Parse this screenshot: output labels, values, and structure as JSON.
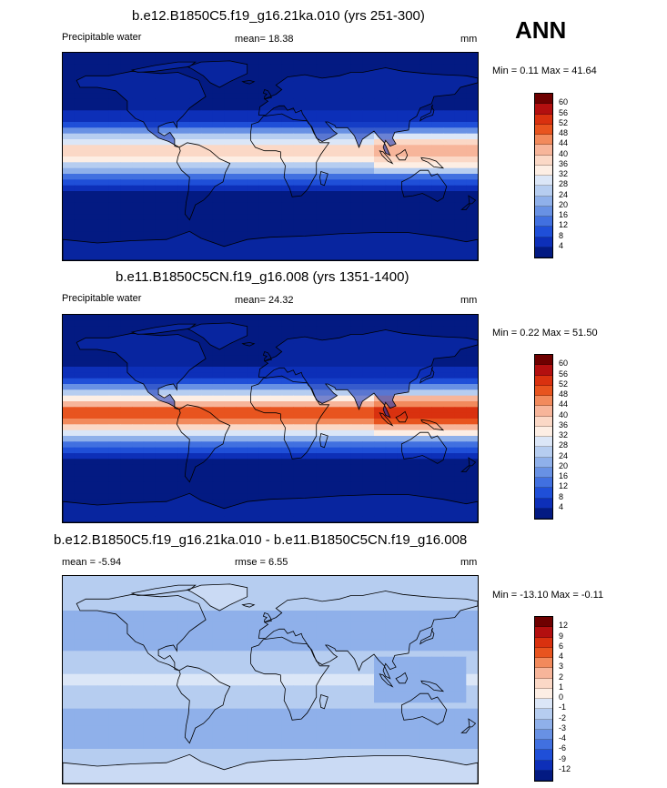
{
  "season": "ANN",
  "panels": [
    {
      "title": "b.e12.B1850C5.f19_g16.21ka.010 (yrs 251-300)",
      "left_label": "Precipitable water",
      "center_label": "mean=  18.38",
      "units": "mm",
      "minmax": "Min =   0.11 Max =  41.64",
      "ticks": [
        "60",
        "56",
        "52",
        "48",
        "44",
        "40",
        "36",
        "32",
        "28",
        "24",
        "20",
        "16",
        "12",
        "8",
        "4"
      ],
      "colors": [
        "#6e0000",
        "#b30f0f",
        "#d9310f",
        "#e8541f",
        "#f28a5c",
        "#f7b59a",
        "#fbd8c6",
        "#fdeee4",
        "#dbe6f7",
        "#b6cdf0",
        "#8fb0ea",
        "#6891e4",
        "#4170e0",
        "#1f4fd8",
        "#0d2fb8",
        "#031a82"
      ],
      "palette_style": "lgm"
    },
    {
      "title": "b.e11.B1850C5CN.f19_g16.008 (yrs 1351-1400)",
      "left_label": "Precipitable water",
      "center_label": "mean=  24.32",
      "units": "mm",
      "minmax": "Min =   0.22 Max =  51.50",
      "ticks": [
        "60",
        "56",
        "52",
        "48",
        "44",
        "40",
        "36",
        "32",
        "28",
        "24",
        "20",
        "16",
        "12",
        "8",
        "4"
      ],
      "colors": [
        "#6e0000",
        "#b30f0f",
        "#d9310f",
        "#e8541f",
        "#f28a5c",
        "#f7b59a",
        "#fbd8c6",
        "#fdeee4",
        "#dbe6f7",
        "#b6cdf0",
        "#8fb0ea",
        "#6891e4",
        "#4170e0",
        "#1f4fd8",
        "#0d2fb8",
        "#031a82"
      ],
      "palette_style": "pi"
    },
    {
      "title": "b.e12.B1850C5.f19_g16.21ka.010 - b.e11.B1850C5CN.f19_g16.008",
      "left_label": "mean =  -5.94",
      "center_label": "rmse =   6.55",
      "units": "mm",
      "minmax": "Min = -13.10 Max =  -0.11",
      "ticks": [
        "12",
        "9",
        "6",
        "4",
        "3",
        "2",
        "1",
        "0",
        "-1",
        "-2",
        "-3",
        "-4",
        "-6",
        "-9",
        "-12"
      ],
      "colors": [
        "#6e0000",
        "#b30f0f",
        "#d9310f",
        "#e8541f",
        "#f28a5c",
        "#f7b59a",
        "#fbd8c6",
        "#fdeee4",
        "#dbe6f7",
        "#b6cdf0",
        "#8fb0ea",
        "#6891e4",
        "#4170e0",
        "#1f4fd8",
        "#0d2fb8",
        "#031a82"
      ],
      "palette_style": "diff"
    }
  ]
}
